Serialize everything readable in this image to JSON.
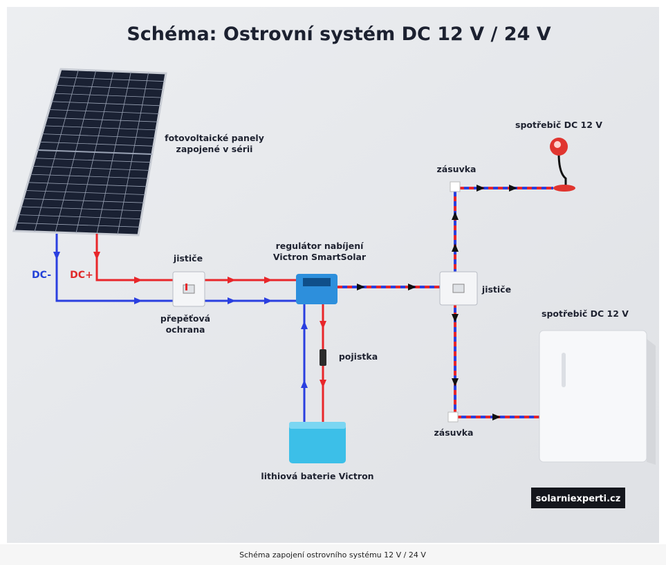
{
  "title": "Schéma: Ostrovní systém DC 12 V / 24 V",
  "labels": {
    "panels": [
      "fotovoltaické panely",
      "zapojené v sérii"
    ],
    "dc_minus": "DC-",
    "dc_plus": "DC+",
    "breakers_left": "jističe",
    "surge": [
      "přepěťová",
      "ochrana"
    ],
    "controller": [
      "regulátor nabíjení",
      "Victron SmartSolar"
    ],
    "fuse": "pojistka",
    "battery": "lithiová baterie Victron",
    "breakers_right": "jističe",
    "socket_top": "zásuvka",
    "socket_bottom": "zásuvka",
    "load_top": "spotřebič DC 12 V",
    "load_right": "spotřebič DC 12 V",
    "logo": "solarniexperti.cz"
  },
  "caption": "Schéma zapojení ostrovního systému 12 V / 24 V"
}
